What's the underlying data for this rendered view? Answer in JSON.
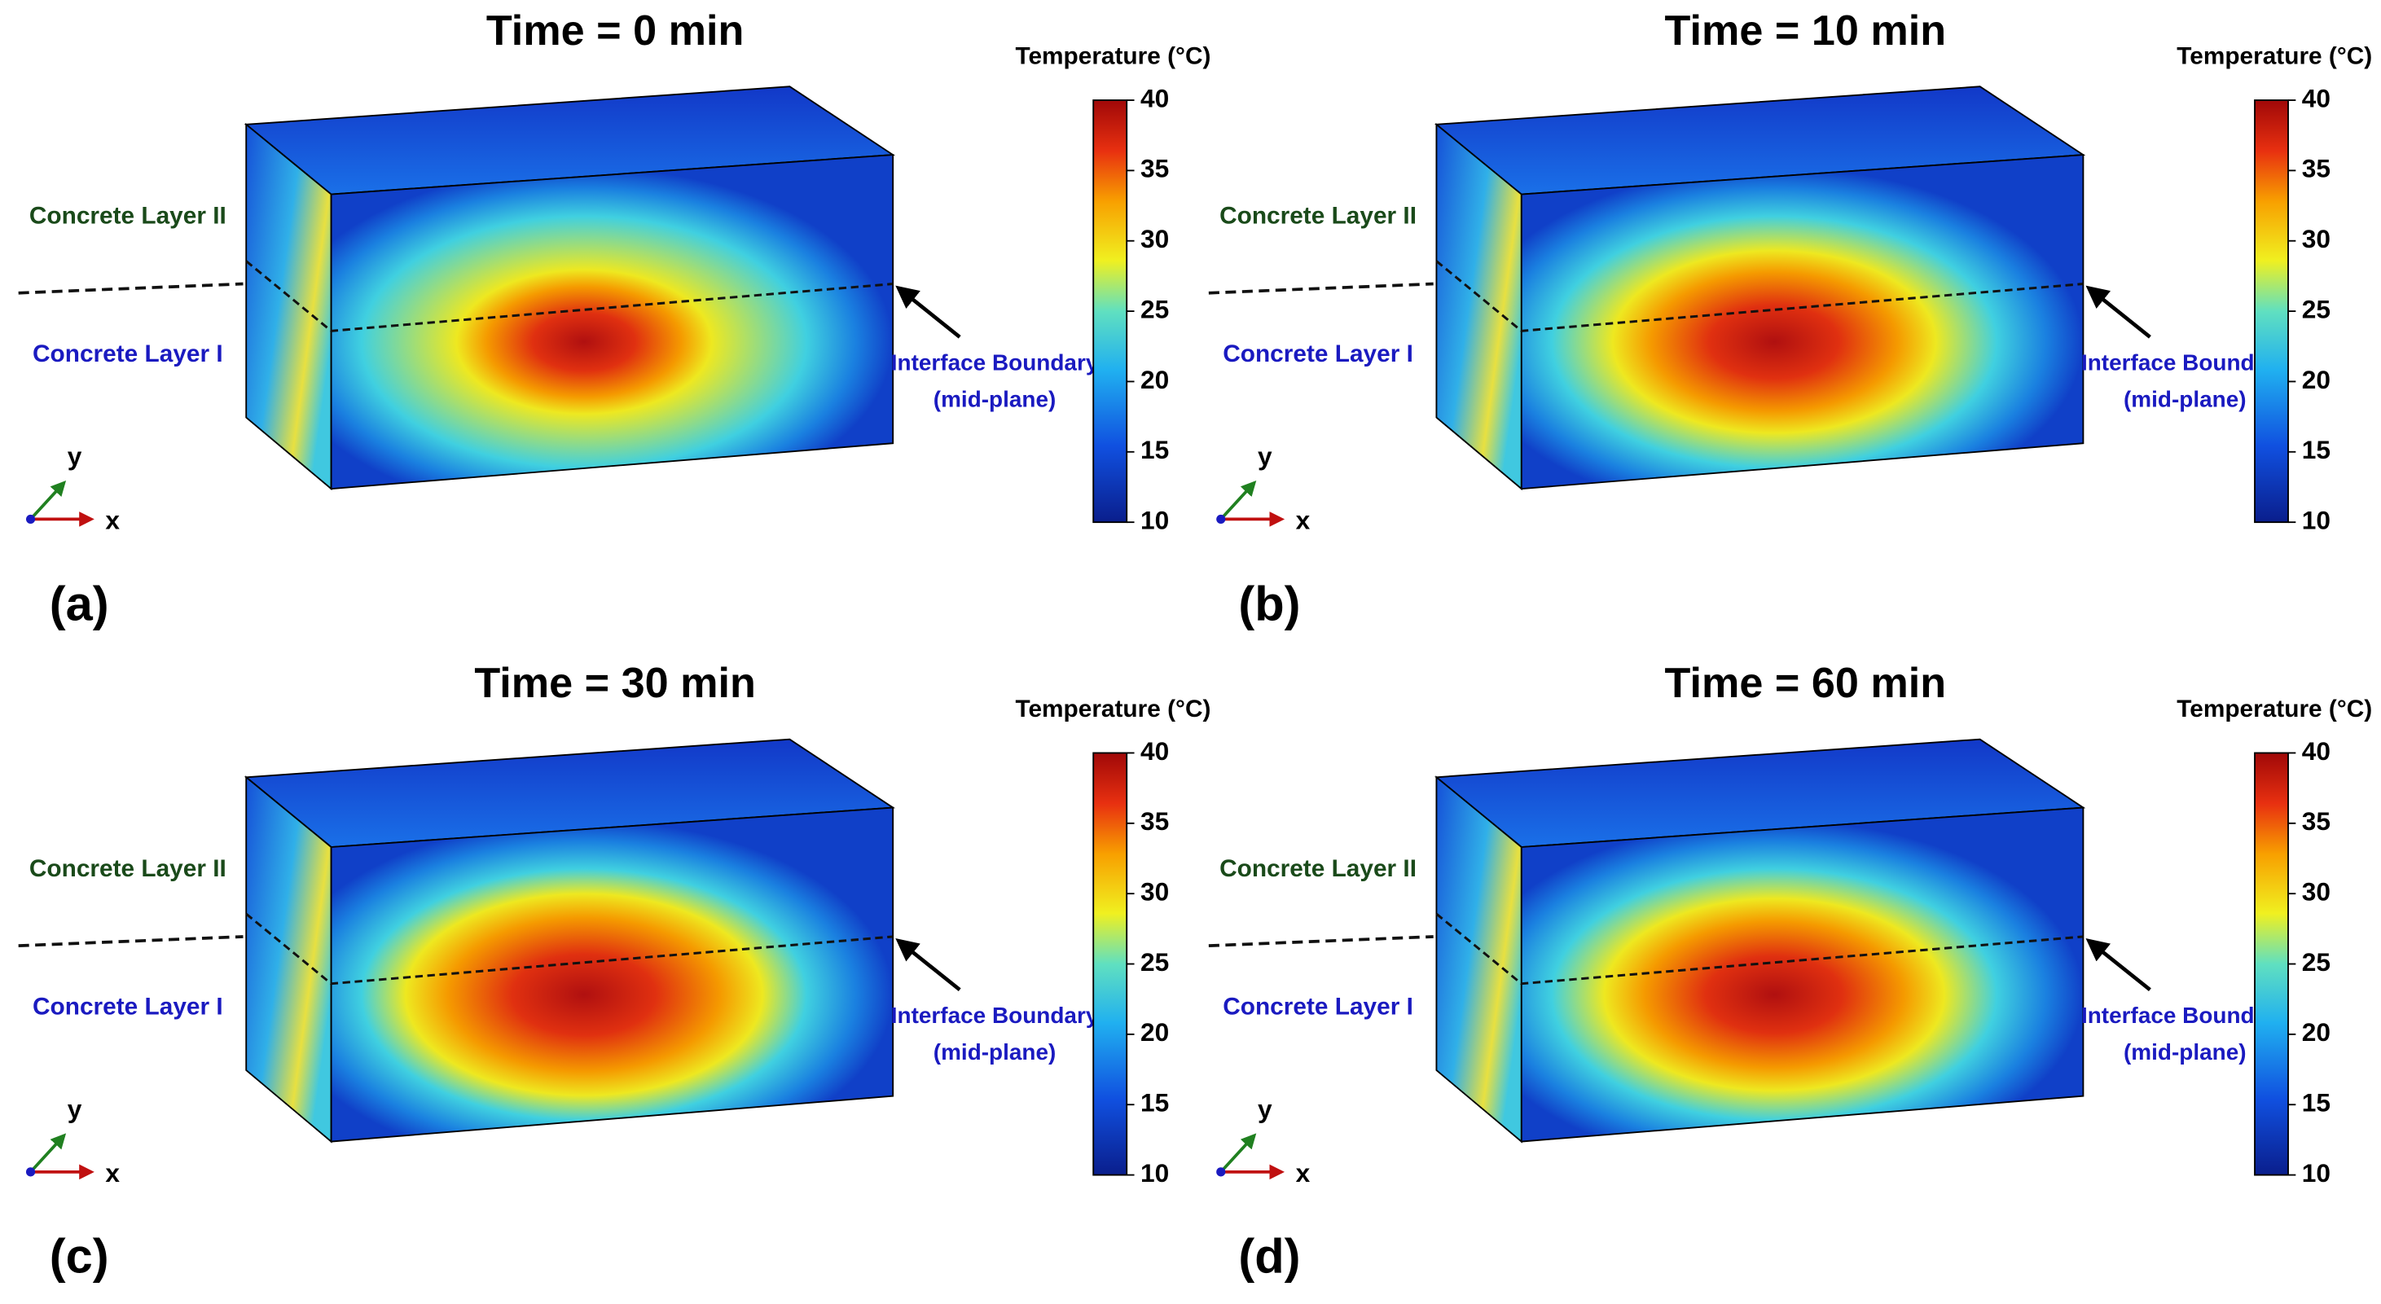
{
  "panels": [
    {
      "label": "(a)",
      "title": "Time = 0 min",
      "colorbar_title": "Temperature (°C)",
      "colorbar_ticks": [
        40,
        35,
        30,
        25,
        20,
        15,
        10
      ],
      "layer_top": "Concrete Layer II",
      "layer_bottom": "Concrete Layer I",
      "interface": [
        "Interface Boundary",
        "(mid-plane)"
      ],
      "axes": [
        "y",
        "x"
      ]
    },
    {
      "label": "(b)",
      "title": "Time = 10 min",
      "colorbar_title": "Temperature (°C)",
      "colorbar_ticks": [
        40,
        35,
        30,
        25,
        20,
        15,
        10
      ],
      "layer_top": "Concrete Layer II",
      "layer_bottom": "Concrete Layer I",
      "interface": [
        "Interface Boundary",
        "(mid-plane)"
      ],
      "axes": [
        "y",
        "x"
      ]
    },
    {
      "label": "(c)",
      "title": "Time = 30 min",
      "colorbar_title": "Temperature (°C)",
      "colorbar_ticks": [
        40,
        35,
        30,
        25,
        20,
        15,
        10
      ],
      "layer_top": "Concrete Layer II",
      "layer_bottom": "Concrete Layer I",
      "interface": [
        "Interface Boundary",
        "(mid-plane)"
      ],
      "axes": [
        "y",
        "x"
      ]
    },
    {
      "label": "(d)",
      "title": "Time = 60 min",
      "colorbar_title": "Temperature (°C)",
      "colorbar_ticks": [
        40,
        35,
        30,
        25,
        20,
        15,
        10
      ],
      "layer_top": "Concrete Layer II",
      "layer_bottom": "Concrete Layer I",
      "interface": [
        "Interface Boundary",
        "(mid-plane)"
      ],
      "axes": [
        "y",
        "x"
      ]
    }
  ]
}
